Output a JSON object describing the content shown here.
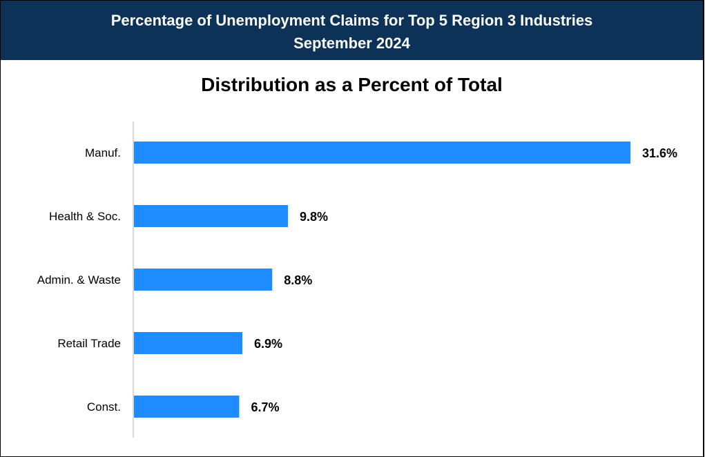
{
  "header": {
    "title_line1": "Percentage of Unemployment Claims for Top 5 Region 3 Industries",
    "title_line2": "September 2024"
  },
  "colors": {
    "header_bg": "#0d3257",
    "bar": "#1e8bff",
    "axis": "#c8c8c8"
  },
  "chart_data": {
    "type": "bar",
    "orientation": "horizontal",
    "title": "Distribution as a Percent of Total",
    "categories": [
      "Manuf.",
      "Health & Soc.",
      "Admin. & Waste",
      "Retail Trade",
      "Const."
    ],
    "values": [
      31.6,
      9.8,
      8.8,
      6.9,
      6.7
    ],
    "data_labels": [
      "31.6%",
      "9.8%",
      "8.8%",
      "6.9%",
      "6.7%"
    ],
    "unit": "%",
    "xlabel": "",
    "ylabel": "",
    "xlim": [
      0,
      31.6
    ],
    "grid": false,
    "legend": "none"
  }
}
